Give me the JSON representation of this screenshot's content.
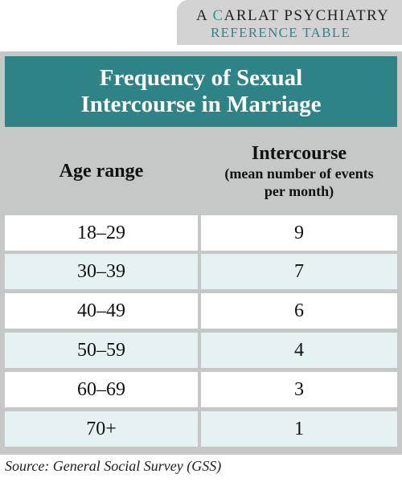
{
  "badge": {
    "line1_a": "A ",
    "line1_c": "C",
    "line1_rest": "ARLAT PSYCHIATRY",
    "line2": "REFERENCE TABLE"
  },
  "table": {
    "title": "Frequency of Sexual Intercourse in Marriage",
    "header_left": "Age range",
    "header_right_main": "Intercourse",
    "header_right_sub": "(mean number of events per month)",
    "rows": [
      {
        "age": "18–29",
        "value": "9"
      },
      {
        "age": "30–39",
        "value": "7"
      },
      {
        "age": "40–49",
        "value": "6"
      },
      {
        "age": "50–59",
        "value": "4"
      },
      {
        "age": "60–69",
        "value": "3"
      },
      {
        "age": "70+",
        "value": "1"
      }
    ]
  },
  "source": "Source: General Social Survey (GSS)",
  "colors": {
    "teal": "#2e8387",
    "header_gray": "#c6c8c8",
    "row_light": "#e6f1f2"
  }
}
